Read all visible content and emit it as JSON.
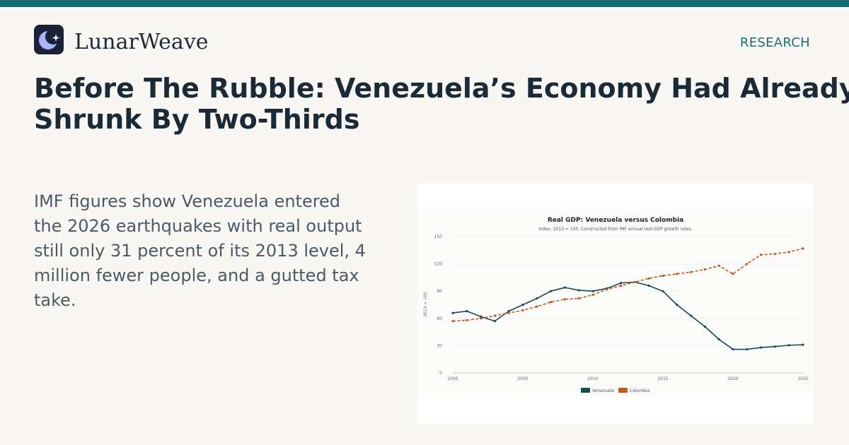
{
  "brand": {
    "name": "LunarWeave",
    "logo_icon": "moon-star-icon"
  },
  "nav": {
    "section": "RESEARCH"
  },
  "headline": {
    "line1": "Before The Rubble: Venezuela’s Economy Had Already",
    "line2": "Shrunk By Two-Thirds"
  },
  "dek": "IMF figures show Venezuela entered the 2026 earthquakes with real output still only 31 percent of its 2013 level, 4 million fewer people, and a gutted tax take.",
  "colors": {
    "accent": "#166d6f",
    "venezuela": "#154a57",
    "colombia": "#c4581f"
  },
  "chart_data": {
    "type": "line",
    "title": "Real GDP: Venezuela versus Colombia",
    "subtitle": "Index, 2013 = 100. Constructed from IMF annual real-GDP growth rates.",
    "xlabel": "",
    "ylabel": "2013 = 100",
    "xlim": [
      2000,
      2025
    ],
    "ylim": [
      0,
      150
    ],
    "x_ticks": [
      "2000",
      "2005",
      "2010",
      "2015",
      "2020",
      "2025"
    ],
    "y_ticks": [
      "0",
      "30",
      "60",
      "90",
      "120",
      "150"
    ],
    "grid": true,
    "legend": "bottom",
    "x": [
      2000,
      2001,
      2002,
      2003,
      2004,
      2005,
      2006,
      2007,
      2008,
      2009,
      2010,
      2011,
      2012,
      2013,
      2014,
      2015,
      2016,
      2017,
      2018,
      2019,
      2020,
      2021,
      2022,
      2023,
      2024,
      2025
    ],
    "series": [
      {
        "name": "Venezuela",
        "style": "solid",
        "values": [
          66,
          68,
          62,
          57,
          68,
          75,
          82,
          90,
          94,
          91,
          90,
          93,
          99,
          100,
          96,
          90,
          75,
          63,
          51,
          37,
          26,
          26,
          28,
          29,
          30.5,
          31
        ]
      },
      {
        "name": "Colombia",
        "style": "dashed",
        "values": [
          57,
          58,
          60,
          63,
          66,
          69,
          73,
          78,
          81,
          82,
          86,
          92,
          96,
          100,
          104,
          107,
          109,
          111,
          114,
          118,
          109,
          120,
          130,
          131,
          133,
          137
        ]
      }
    ]
  }
}
